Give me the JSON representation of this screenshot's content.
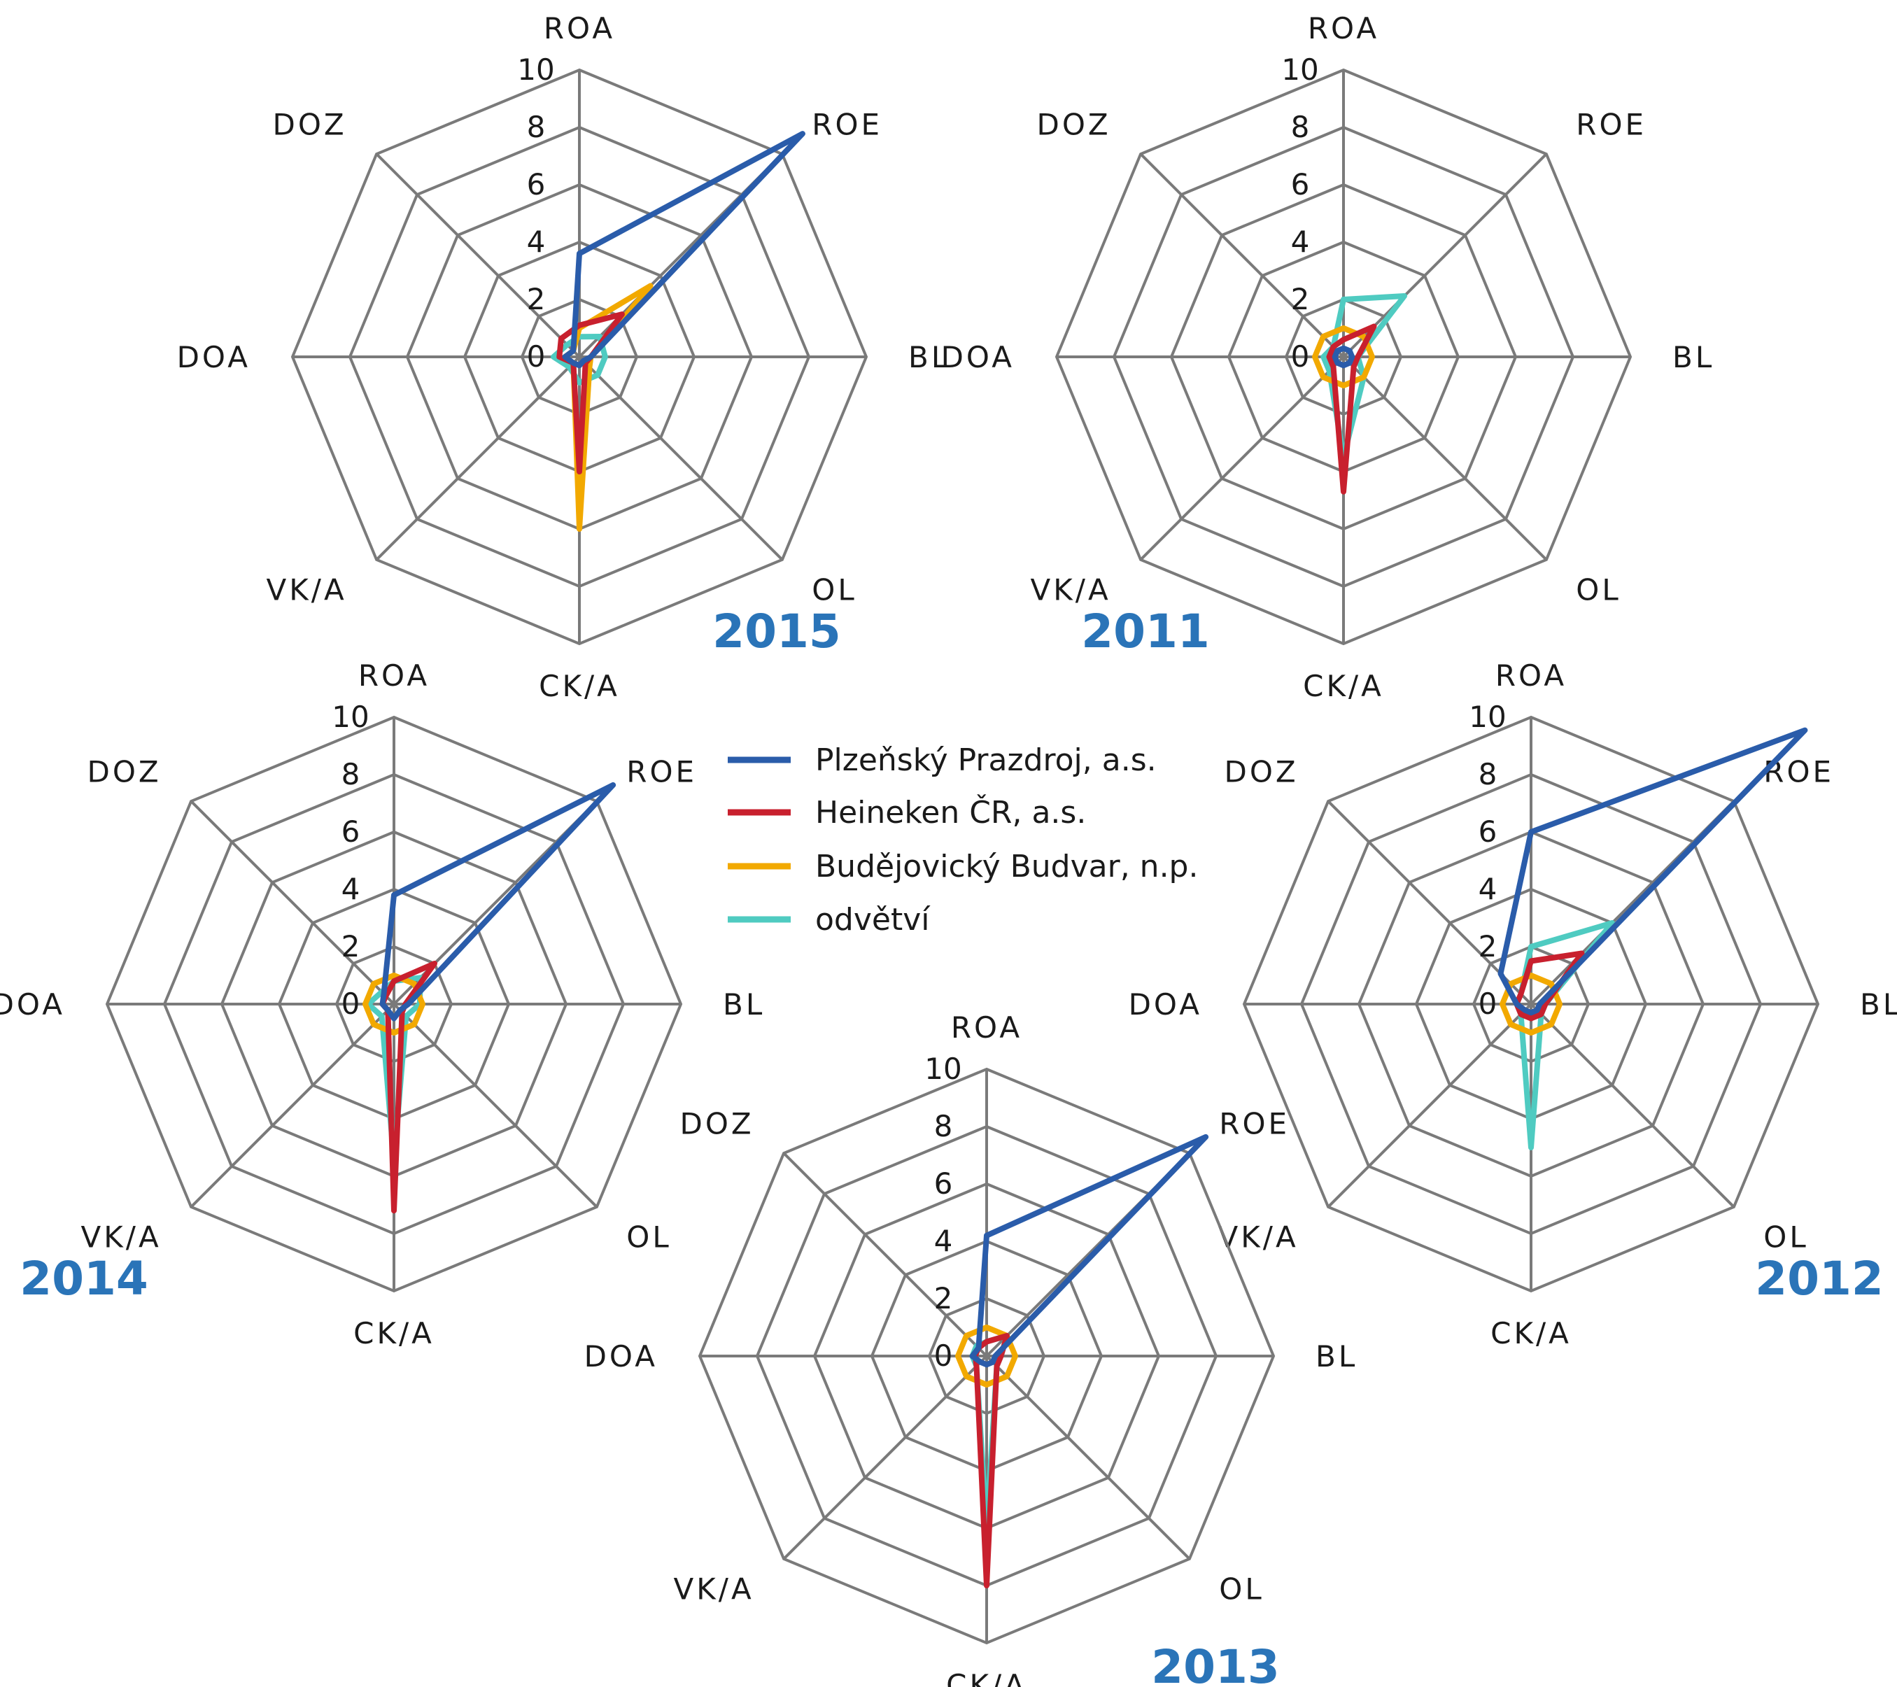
{
  "legend": [
    {
      "name": "Plzeňský Prazdroj, a.s.",
      "color": "#2a5caa"
    },
    {
      "name": "Heineken ČR, a.s.",
      "color": "#c8202e"
    },
    {
      "name": "Budějovický Budvar, n.p.",
      "color": "#f2a900"
    },
    {
      "name": "odvětví",
      "color": "#4fcbc1"
    }
  ],
  "chart_data": [
    {
      "type": "radar",
      "year": "2015",
      "axes": [
        "ROA",
        "ROE",
        "BL",
        "OL",
        "CK/A",
        "VK/A",
        "DOA",
        "DOZ"
      ],
      "ticks": [
        "0",
        "2",
        "4",
        "6",
        "8",
        "10"
      ],
      "rlim": [
        0,
        10
      ],
      "grid": "on",
      "series": [
        {
          "name": "Plzeňský Prazdroj, a.s.",
          "values": [
            3.6,
            11.0,
            0.4,
            0.2,
            0.3,
            0.3,
            0.5,
            0.3
          ]
        },
        {
          "name": "Heineken ČR, a.s.",
          "values": [
            1.1,
            2.1,
            0.4,
            0.3,
            4.0,
            0.3,
            0.7,
            0.9
          ]
        },
        {
          "name": "Budějovický Budvar, n.p.",
          "values": [
            1.0,
            3.5,
            0.4,
            0.5,
            6.0,
            0.3,
            0.5,
            0.3
          ]
        },
        {
          "name": "odvětví",
          "values": [
            0.7,
            1.0,
            0.9,
            0.9,
            0.9,
            0.5,
            0.9,
            0.6
          ]
        }
      ]
    },
    {
      "type": "radar",
      "year": "2011",
      "axes": [
        "ROA",
        "ROE",
        "BL",
        "OL",
        "CK/A",
        "VK/A",
        "DOA",
        "DOZ"
      ],
      "ticks": [
        "0",
        "2",
        "4",
        "6",
        "8",
        "10"
      ],
      "rlim": [
        0,
        10
      ],
      "grid": "on",
      "series": [
        {
          "name": "Plzeňský Prazdroj, a.s.",
          "values": [
            0.3,
            0.3,
            0.3,
            0.3,
            0.3,
            0.3,
            0.3,
            0.3
          ]
        },
        {
          "name": "Heineken ČR, a.s.",
          "values": [
            0.6,
            1.5,
            0.5,
            0.5,
            4.7,
            0.5,
            0.5,
            0.5
          ]
        },
        {
          "name": "Budějovický Budvar, n.p.",
          "values": [
            1.0,
            1.0,
            1.0,
            1.0,
            1.0,
            1.0,
            1.0,
            1.0
          ]
        },
        {
          "name": "odvětví",
          "values": [
            2.0,
            3.0,
            0.5,
            1.0,
            3.5,
            0.7,
            0.7,
            0.5
          ]
        }
      ]
    },
    {
      "type": "radar",
      "year": "2014",
      "axes": [
        "ROA",
        "ROE",
        "BL",
        "OL",
        "CK/A",
        "VK/A",
        "DOA",
        "DOZ"
      ],
      "ticks": [
        "0",
        "2",
        "4",
        "6",
        "8",
        "10"
      ],
      "rlim": [
        0,
        10
      ],
      "grid": "on",
      "series": [
        {
          "name": "Plzeňský Prazdroj, a.s.",
          "values": [
            3.8,
            10.8,
            0.5,
            0.3,
            0.5,
            0.3,
            0.4,
            0.5
          ]
        },
        {
          "name": "Heineken ČR, a.s.",
          "values": [
            0.8,
            2.0,
            0.4,
            0.4,
            7.2,
            0.3,
            0.4,
            0.4
          ]
        },
        {
          "name": "Budějovický Budvar, n.p.",
          "values": [
            1.0,
            1.0,
            1.0,
            1.0,
            1.0,
            1.0,
            1.0,
            1.0
          ]
        },
        {
          "name": "odvětví",
          "values": [
            0.8,
            1.3,
            0.9,
            0.6,
            5.5,
            0.6,
            0.9,
            0.6
          ]
        }
      ]
    },
    {
      "type": "radar",
      "year": "2012",
      "axes": [
        "ROA",
        "ROE",
        "BL",
        "OL",
        "CK/A",
        "VK/A",
        "DOA",
        "DOZ"
      ],
      "ticks": [
        "0",
        "2",
        "4",
        "6",
        "8",
        "10"
      ],
      "rlim": [
        0,
        10
      ],
      "grid": "on",
      "series": [
        {
          "name": "Plzeňský Prazdroj, a.s.",
          "values": [
            6.0,
            13.5,
            0.3,
            0.3,
            0.3,
            0.3,
            0.5,
            1.5
          ]
        },
        {
          "name": "Heineken ČR, a.s.",
          "values": [
            1.5,
            2.5,
            0.5,
            0.5,
            0.5,
            0.5,
            0.5,
            0.5
          ]
        },
        {
          "name": "Budějovický Budvar, n.p.",
          "values": [
            1.0,
            1.0,
            1.0,
            1.0,
            1.0,
            1.0,
            1.0,
            1.0
          ]
        },
        {
          "name": "odvětví",
          "values": [
            2.0,
            4.0,
            0.5,
            0.5,
            5.0,
            0.5,
            0.5,
            0.5
          ]
        }
      ]
    },
    {
      "type": "radar",
      "year": "2013",
      "axes": [
        "ROA",
        "ROE",
        "BL",
        "OL",
        "CK/A",
        "VK/A",
        "DOA",
        "DOZ"
      ],
      "ticks": [
        "0",
        "2",
        "4",
        "6",
        "8",
        "10"
      ],
      "rlim": [
        0,
        10
      ],
      "grid": "on",
      "series": [
        {
          "name": "Plzeňský Prazdroj, a.s.",
          "values": [
            4.2,
            10.8,
            0.3,
            0.3,
            0.3,
            0.3,
            0.5,
            0.4
          ]
        },
        {
          "name": "Heineken ČR, a.s.",
          "values": [
            0.5,
            1.0,
            0.5,
            0.5,
            8.0,
            0.5,
            0.4,
            0.4
          ]
        },
        {
          "name": "Budějovický Budvar, n.p.",
          "values": [
            1.0,
            1.0,
            1.0,
            1.0,
            1.0,
            1.0,
            1.0,
            1.0
          ]
        },
        {
          "name": "odvětví",
          "values": [
            0.5,
            1.0,
            0.5,
            0.5,
            6.0,
            0.5,
            0.5,
            0.5
          ]
        }
      ]
    }
  ]
}
